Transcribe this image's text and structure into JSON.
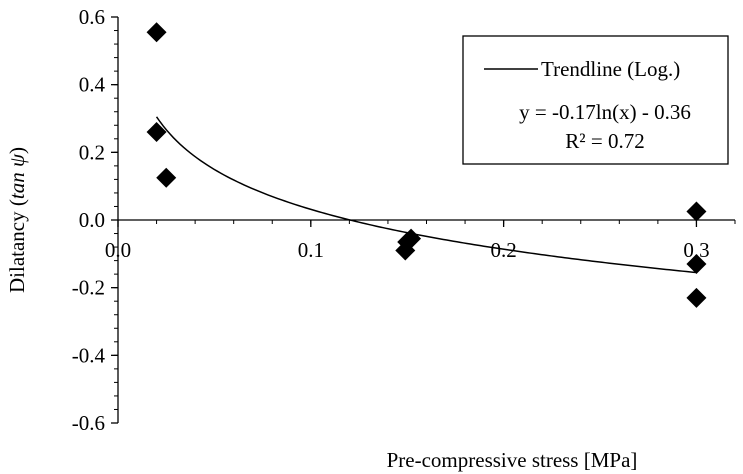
{
  "chart_data": {
    "type": "scatter",
    "xlabel": "Pre-compressive stress [MPa]",
    "ylabel": "Dilatancy (tan ψ)",
    "ylabel_parts": {
      "prefix": "Dilatancy (",
      "italic": "tan ψ",
      "suffix": ")"
    },
    "xlim": [
      0.0,
      0.32
    ],
    "ylim": [
      -0.6,
      0.6
    ],
    "x_ticks": [
      0.0,
      0.1,
      0.2,
      0.3
    ],
    "x_tick_labels": [
      "0.0",
      "0.1",
      "0.2",
      "0.3"
    ],
    "y_ticks": [
      0.6,
      0.4,
      0.2,
      0.0,
      -0.2,
      -0.4,
      -0.6
    ],
    "y_tick_labels": [
      "0.6",
      "0.4",
      "0.2",
      "0.0",
      "-0.2",
      "-0.4",
      "-0.6"
    ],
    "grid": false,
    "legend_position": "top-right",
    "points": [
      {
        "x": 0.02,
        "y": 0.555
      },
      {
        "x": 0.02,
        "y": 0.26
      },
      {
        "x": 0.025,
        "y": 0.125
      },
      {
        "x": 0.15,
        "y": -0.065
      },
      {
        "x": 0.152,
        "y": -0.055
      },
      {
        "x": 0.149,
        "y": -0.09
      },
      {
        "x": 0.3,
        "y": 0.025
      },
      {
        "x": 0.3,
        "y": -0.13
      },
      {
        "x": 0.3,
        "y": -0.23
      }
    ],
    "trendline": {
      "name": "Trendline (Log.)",
      "a": -0.17,
      "b": -0.36,
      "x_range": [
        0.02,
        0.3
      ],
      "equation": "y = -0.17ln(x) - 0.36",
      "r_squared": "R² = 0.72"
    },
    "colors": {
      "marker": "#000000",
      "line": "#000000",
      "axis": "#000000"
    }
  }
}
